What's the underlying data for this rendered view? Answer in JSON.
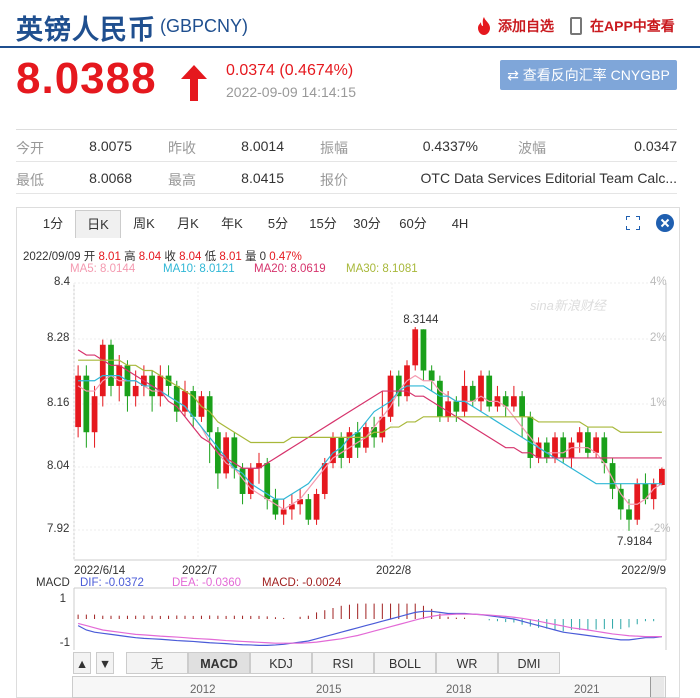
{
  "header": {
    "name": "英镑人民币",
    "code": "(GBPCNY)",
    "add_watch": "添加自选",
    "app_view": "在APP中查看"
  },
  "quote": {
    "price": "8.0388",
    "change": "0.0374 (0.4674%)",
    "time": "2022-09-09 14:14:15",
    "reverse_button": "查看反向汇率 CNYGBP"
  },
  "stats": [
    [
      {
        "label": "今开",
        "value": "8.0075"
      },
      {
        "label": "昨收",
        "value": "8.0014"
      },
      {
        "label": "振幅",
        "value": "0.4337%"
      },
      {
        "label": "波幅",
        "value": "0.0347"
      }
    ],
    [
      {
        "label": "最低",
        "value": "8.0068"
      },
      {
        "label": "最高",
        "value": "8.0415"
      },
      {
        "label": "报价",
        "value": "OTC Data Services Editorial Team Calc..."
      }
    ]
  ],
  "tabs": [
    "1分",
    "日K",
    "周K",
    "月K",
    "年K",
    "5分",
    "15分",
    "30分",
    "60分",
    "4H"
  ],
  "active_tab": "日K",
  "info_bar": {
    "date": "2022/09/09",
    "open_label": "开",
    "open": "8.01",
    "high_label": "高",
    "high": "8.04",
    "close_label": "收",
    "close": "8.04",
    "low_label": "低",
    "low": "8.01",
    "vol_label": "量",
    "vol": "0",
    "pct": "0.47%"
  },
  "ma": {
    "ma5": "MA5: 8.0144",
    "ma10": "MA10: 8.0121",
    "ma20": "MA20: 8.0619",
    "ma30": "MA30: 8.1081"
  },
  "colors": {
    "up": "#e5181e",
    "down": "#1aa01a",
    "ma5": "#f49ab0",
    "ma10": "#2fb7d6",
    "ma20": "#d6336c",
    "ma30": "#a8b83a",
    "dif": "#4a5bd8",
    "dea": "#e36ad6",
    "macd": "#a02020"
  },
  "chart_data": {
    "type": "candlestick",
    "y_ticks": [
      "8.4",
      "8.28",
      "8.16",
      "8.04",
      "7.92"
    ],
    "pct_ticks": [
      "4%",
      "2%",
      "1%",
      "",
      "-2%"
    ],
    "x_labels": [
      "2022/6/14",
      "2022/7",
      "2022/8",
      "2022/9/9"
    ],
    "ylim": [
      7.9,
      8.4
    ],
    "annotations": [
      {
        "label": "8.3144",
        "value": 8.3144
      },
      {
        "label": "7.9184",
        "value": 7.9184
      }
    ],
    "candles": [
      [
        8.12,
        8.22,
        8.1,
        8.24
      ],
      [
        8.22,
        8.11,
        8.08,
        8.24
      ],
      [
        8.11,
        8.18,
        8.08,
        8.2
      ],
      [
        8.18,
        8.28,
        8.16,
        8.29
      ],
      [
        8.28,
        8.2,
        8.18,
        8.29
      ],
      [
        8.2,
        8.24,
        8.17,
        8.26
      ],
      [
        8.24,
        8.18,
        8.15,
        8.25
      ],
      [
        8.18,
        8.2,
        8.16,
        8.23
      ],
      [
        8.2,
        8.22,
        8.18,
        8.24
      ],
      [
        8.22,
        8.18,
        8.15,
        8.23
      ],
      [
        8.18,
        8.22,
        8.16,
        8.24
      ],
      [
        8.22,
        8.2,
        8.18,
        8.24
      ],
      [
        8.2,
        8.15,
        8.13,
        8.21
      ],
      [
        8.15,
        8.19,
        8.14,
        8.21
      ],
      [
        8.19,
        8.14,
        8.12,
        8.2
      ],
      [
        8.14,
        8.18,
        8.13,
        8.19
      ],
      [
        8.18,
        8.11,
        8.05,
        8.19
      ],
      [
        8.11,
        8.03,
        8.0,
        8.12
      ],
      [
        8.03,
        8.1,
        8.02,
        8.11
      ],
      [
        8.1,
        8.04,
        8.02,
        8.11
      ],
      [
        8.04,
        7.99,
        7.97,
        8.05
      ],
      [
        7.99,
        8.04,
        7.98,
        8.05
      ],
      [
        8.04,
        8.05,
        8.01,
        8.07
      ],
      [
        8.05,
        7.98,
        7.96,
        8.06
      ],
      [
        7.98,
        7.95,
        7.94,
        8.0
      ],
      [
        7.95,
        7.96,
        7.93,
        7.98
      ],
      [
        7.96,
        7.97,
        7.94,
        7.99
      ],
      [
        7.97,
        7.98,
        7.95,
        8.0
      ],
      [
        7.98,
        7.94,
        7.93,
        7.99
      ],
      [
        7.94,
        7.99,
        7.93,
        8.0
      ],
      [
        7.99,
        8.05,
        7.98,
        8.06
      ],
      [
        8.05,
        8.1,
        8.04,
        8.11
      ],
      [
        8.1,
        8.06,
        8.04,
        8.11
      ],
      [
        8.06,
        8.11,
        8.05,
        8.12
      ],
      [
        8.11,
        8.08,
        8.06,
        8.13
      ],
      [
        8.08,
        8.12,
        8.07,
        8.13
      ],
      [
        8.12,
        8.1,
        8.08,
        8.14
      ],
      [
        8.1,
        8.14,
        8.09,
        8.19
      ],
      [
        8.14,
        8.22,
        8.13,
        8.23
      ],
      [
        8.22,
        8.18,
        8.16,
        8.23
      ],
      [
        8.18,
        8.24,
        8.17,
        8.25
      ],
      [
        8.24,
        8.31,
        8.23,
        8.3144
      ],
      [
        8.31,
        8.23,
        8.21,
        8.31
      ],
      [
        8.23,
        8.21,
        8.19,
        8.24
      ],
      [
        8.21,
        8.14,
        8.13,
        8.22
      ],
      [
        8.14,
        8.17,
        8.13,
        8.19
      ],
      [
        8.17,
        8.15,
        8.13,
        8.18
      ],
      [
        8.15,
        8.2,
        8.14,
        8.23
      ],
      [
        8.2,
        8.17,
        8.16,
        8.21
      ],
      [
        8.17,
        8.22,
        8.15,
        8.23
      ],
      [
        8.22,
        8.16,
        8.15,
        8.23
      ],
      [
        8.16,
        8.18,
        8.15,
        8.2
      ],
      [
        8.18,
        8.16,
        8.14,
        8.19
      ],
      [
        8.16,
        8.18,
        8.15,
        8.2
      ],
      [
        8.18,
        8.14,
        8.1,
        8.19
      ],
      [
        8.14,
        8.06,
        8.04,
        8.15
      ],
      [
        8.06,
        8.09,
        8.05,
        8.1
      ],
      [
        8.09,
        8.06,
        8.05,
        8.1
      ],
      [
        8.06,
        8.1,
        8.05,
        8.11
      ],
      [
        8.1,
        8.06,
        8.05,
        8.11
      ],
      [
        8.06,
        8.09,
        8.04,
        8.1
      ],
      [
        8.09,
        8.11,
        8.07,
        8.12
      ],
      [
        8.11,
        8.07,
        8.06,
        8.12
      ],
      [
        8.07,
        8.1,
        8.06,
        8.11
      ],
      [
        8.1,
        8.05,
        8.03,
        8.11
      ],
      [
        8.05,
        8.0,
        7.98,
        8.06
      ],
      [
        8.0,
        7.96,
        7.94,
        8.01
      ],
      [
        7.96,
        7.94,
        7.9184,
        7.98
      ],
      [
        7.94,
        8.01,
        7.93,
        8.02
      ],
      [
        8.01,
        7.98,
        7.97,
        8.03
      ],
      [
        7.98,
        8.01,
        7.96,
        8.02
      ],
      [
        8.0075,
        8.0388,
        8.0068,
        8.0415
      ]
    ],
    "ma_lines": {
      "ma5": [
        8.2,
        8.19,
        8.19,
        8.21,
        8.22,
        8.21,
        8.21,
        8.21,
        8.2,
        8.19,
        8.19,
        8.18,
        8.17,
        8.16,
        8.14,
        8.12,
        8.09,
        8.07,
        8.05,
        8.04,
        8.02,
        8.0,
        7.99,
        7.98,
        7.97,
        7.96,
        7.97,
        7.98,
        8.0,
        8.02,
        8.04,
        8.06,
        8.07,
        8.08,
        8.09,
        8.1,
        8.12,
        8.14,
        8.16,
        8.19,
        8.21,
        8.22,
        8.21,
        8.21,
        8.19,
        8.18,
        8.17,
        8.17,
        8.17,
        8.18,
        8.17,
        8.17,
        8.16,
        8.14,
        8.12,
        8.1,
        8.08,
        8.07,
        8.07,
        8.07,
        8.08,
        8.08,
        8.08,
        8.07,
        8.05,
        8.02,
        7.99,
        7.97,
        7.97,
        7.98,
        8.0,
        8.01
      ],
      "ma10": [
        8.21,
        8.21,
        8.21,
        8.22,
        8.22,
        8.22,
        8.21,
        8.21,
        8.2,
        8.2,
        8.19,
        8.18,
        8.17,
        8.16,
        8.14,
        8.12,
        8.1,
        8.08,
        8.06,
        8.04,
        8.03,
        8.01,
        8.0,
        7.99,
        7.98,
        7.98,
        7.99,
        8.0,
        8.01,
        8.03,
        8.05,
        8.07,
        8.08,
        8.1,
        8.11,
        8.13,
        8.15,
        8.16,
        8.17,
        8.19,
        8.2,
        8.2,
        8.2,
        8.19,
        8.18,
        8.18,
        8.17,
        8.17,
        8.16,
        8.15,
        8.14,
        8.13,
        8.12,
        8.11,
        8.1,
        8.09,
        8.08,
        8.07,
        8.06,
        8.05,
        8.04,
        8.03,
        8.02,
        8.01,
        8.01,
        8.01,
        8.01,
        8.01,
        8.01,
        8.01,
        8.01,
        8.01
      ],
      "ma20": [
        8.27,
        8.26,
        8.26,
        8.25,
        8.24,
        8.24,
        8.23,
        8.22,
        8.21,
        8.2,
        8.19,
        8.17,
        8.16,
        8.14,
        8.12,
        8.1,
        8.09,
        8.07,
        8.06,
        8.05,
        8.04,
        8.04,
        8.04,
        8.05,
        8.06,
        8.07,
        8.08,
        8.09,
        8.1,
        8.11,
        8.12,
        8.13,
        8.14,
        8.15,
        8.16,
        8.17,
        8.18,
        8.19,
        8.19,
        8.19,
        8.19,
        8.18,
        8.18,
        8.17,
        8.16,
        8.15,
        8.14,
        8.13,
        8.12,
        8.11,
        8.1,
        8.09,
        8.08,
        8.08,
        8.07,
        8.07,
        8.06,
        8.06,
        8.06,
        8.06,
        8.06,
        8.06,
        8.06,
        8.06,
        8.06,
        8.06,
        8.06,
        8.06,
        8.06,
        8.06,
        8.06,
        8.06
      ],
      "ma30": [
        8.25,
        8.25,
        8.25,
        8.25,
        8.25,
        8.25,
        8.24,
        8.24,
        8.23,
        8.23,
        8.22,
        8.21,
        8.2,
        8.19,
        8.18,
        8.16,
        8.15,
        8.13,
        8.12,
        8.11,
        8.1,
        8.09,
        8.09,
        8.09,
        8.09,
        8.09,
        8.1,
        8.1,
        8.1,
        8.1,
        8.1,
        8.1,
        8.1,
        8.1,
        8.1,
        8.1,
        8.11,
        8.11,
        8.12,
        8.12,
        8.13,
        8.13,
        8.14,
        8.14,
        8.14,
        8.14,
        8.14,
        8.14,
        8.14,
        8.14,
        8.14,
        8.14,
        8.14,
        8.14,
        8.14,
        8.14,
        8.13,
        8.13,
        8.13,
        8.13,
        8.13,
        8.13,
        8.12,
        8.12,
        8.12,
        8.12,
        8.11,
        8.11,
        8.11,
        8.11,
        8.11,
        8.11
      ]
    },
    "macd": {
      "y_ticks": [
        "1",
        "-1"
      ],
      "dif_label": "DIF: -0.0372",
      "dea_label": "DEA: -0.0360",
      "macd_label": "MACD: -0.0024",
      "dif": [
        -0.3,
        -0.5,
        -0.6,
        -0.65,
        -0.7,
        -0.75,
        -0.8,
        -0.85,
        -0.88,
        -0.9,
        -0.92,
        -0.95,
        -0.98,
        -1.0,
        -1.02,
        -1.05,
        -1.08,
        -1.1,
        -1.12,
        -1.15,
        -1.17,
        -1.18,
        -1.2,
        -1.2,
        -1.18,
        -1.15,
        -1.1,
        -1.05,
        -1.0,
        -0.9,
        -0.8,
        -0.7,
        -0.6,
        -0.5,
        -0.4,
        -0.3,
        -0.2,
        -0.1,
        0.0,
        0.1,
        0.2,
        0.3,
        0.35,
        0.35,
        0.3,
        0.25,
        0.25,
        0.25,
        0.22,
        0.2,
        0.15,
        0.1,
        0.05,
        0.0,
        -0.1,
        -0.2,
        -0.3,
        -0.4,
        -0.5,
        -0.6,
        -0.65,
        -0.7,
        -0.75,
        -0.8,
        -0.85,
        -0.9,
        -0.95,
        -0.95,
        -0.9,
        -0.85,
        -0.85,
        -0.8
      ],
      "dea": [
        -0.2,
        -0.3,
        -0.4,
        -0.5,
        -0.55,
        -0.6,
        -0.65,
        -0.7,
        -0.72,
        -0.75,
        -0.78,
        -0.8,
        -0.82,
        -0.85,
        -0.88,
        -0.9,
        -0.92,
        -0.95,
        -0.98,
        -1.0,
        -1.02,
        -1.04,
        -1.06,
        -1.08,
        -1.1,
        -1.1,
        -1.1,
        -1.1,
        -1.08,
        -1.05,
        -1.0,
        -0.95,
        -0.9,
        -0.82,
        -0.75,
        -0.65,
        -0.55,
        -0.45,
        -0.35,
        -0.25,
        -0.15,
        -0.05,
        0.05,
        0.12,
        0.18,
        0.2,
        0.22,
        0.22,
        0.22,
        0.2,
        0.18,
        0.15,
        0.12,
        0.08,
        0.03,
        -0.03,
        -0.1,
        -0.18,
        -0.25,
        -0.32,
        -0.4,
        -0.45,
        -0.5,
        -0.56,
        -0.62,
        -0.68,
        -0.72,
        -0.76,
        -0.78,
        -0.8,
        -0.8,
        -0.8
      ],
      "bars": [
        0.2,
        0.2,
        0.2,
        0.15,
        0.15,
        0.15,
        0.15,
        0.15,
        0.16,
        0.15,
        0.14,
        0.15,
        0.16,
        0.15,
        0.14,
        0.15,
        0.16,
        0.15,
        0.14,
        0.15,
        0.15,
        0.14,
        0.14,
        0.12,
        0.08,
        0.05,
        0.0,
        0.1,
        0.15,
        0.3,
        0.4,
        0.5,
        0.6,
        0.65,
        0.7,
        0.7,
        0.7,
        0.7,
        0.7,
        0.7,
        0.7,
        0.7,
        0.6,
        0.46,
        0.24,
        0.1,
        0.06,
        0.06,
        0.0,
        0.0,
        -0.06,
        -0.1,
        -0.14,
        -0.16,
        -0.26,
        -0.34,
        -0.4,
        -0.44,
        -0.5,
        -0.56,
        -0.5,
        -0.5,
        -0.5,
        -0.48,
        -0.46,
        -0.44,
        -0.46,
        -0.38,
        -0.24,
        -0.1,
        -0.1,
        0.0
      ]
    },
    "nav_years": [
      "2012",
      "2015",
      "2018",
      "2021"
    ]
  },
  "indicator_buttons": [
    "无",
    "MACD",
    "KDJ",
    "RSI",
    "BOLL",
    "WR",
    "DMI"
  ],
  "active_indicator": "MACD",
  "watermark": "sina新浪财经"
}
